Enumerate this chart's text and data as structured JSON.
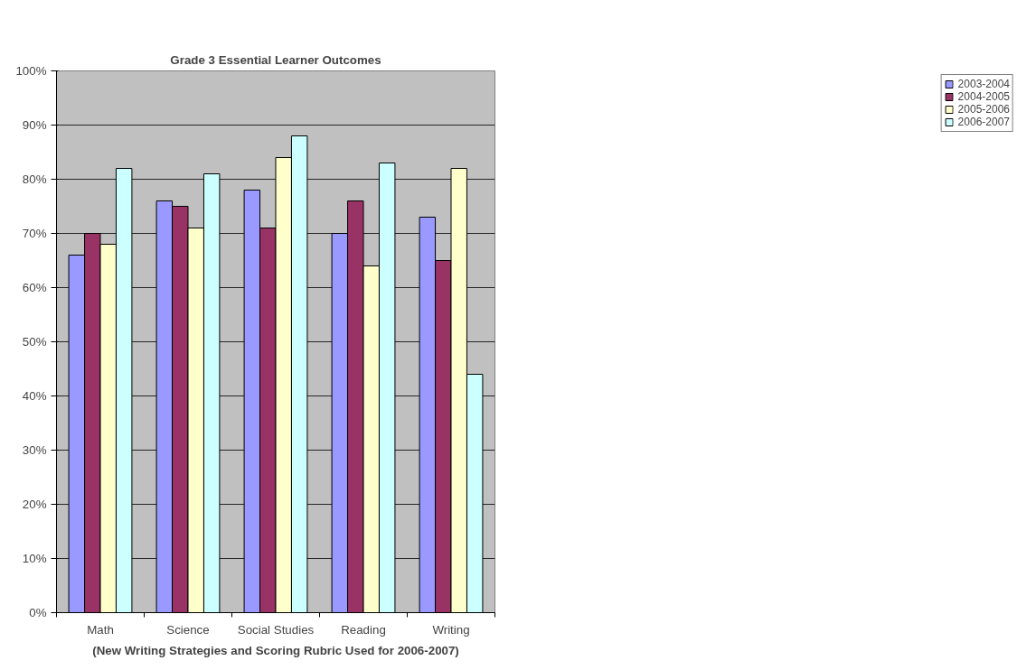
{
  "chart_data": {
    "type": "bar",
    "title": "Grade 3 Essential Learner Outcomes",
    "xlabel": "(New Writing Strategies and Scoring Rubric Used for 2006-2007)",
    "categories": [
      "Math",
      "Science",
      "Social Studies",
      "Reading",
      "Writing"
    ],
    "series": [
      {
        "name": "2003-2004",
        "color": "#9999ff",
        "values": [
          66,
          76,
          78,
          70,
          73
        ]
      },
      {
        "name": "2004-2005",
        "color": "#993366",
        "values": [
          70,
          75,
          71,
          76,
          65
        ]
      },
      {
        "name": "2005-2006",
        "color": "#ffffcc",
        "values": [
          68,
          71,
          84,
          64,
          82
        ]
      },
      {
        "name": "2006-2007",
        "color": "#ccffff",
        "values": [
          82,
          81,
          88,
          83,
          44
        ]
      }
    ],
    "ylim": [
      0,
      100
    ],
    "yticks": [
      {
        "value": 0,
        "label": "0%"
      },
      {
        "value": 10,
        "label": "10%"
      },
      {
        "value": 20,
        "label": "20%"
      },
      {
        "value": 30,
        "label": "30%"
      },
      {
        "value": 40,
        "label": "40%"
      },
      {
        "value": 50,
        "label": "50%"
      },
      {
        "value": 60,
        "label": "60%"
      },
      {
        "value": 70,
        "label": "70%"
      },
      {
        "value": 80,
        "label": "80%"
      },
      {
        "value": 90,
        "label": "90%"
      },
      {
        "value": 100,
        "label": "100%"
      }
    ],
    "grid": "y",
    "legend": "right"
  }
}
